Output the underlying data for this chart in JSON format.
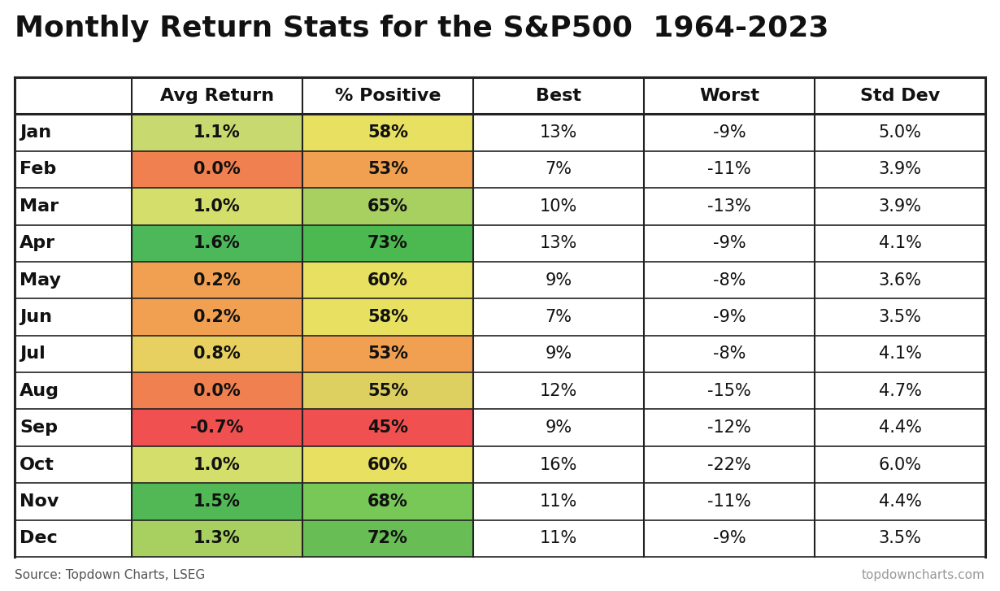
{
  "title": "Monthly Return Stats for the S&P500  1964-2023",
  "columns": [
    "",
    "Avg Return",
    "% Positive",
    "Best",
    "Worst",
    "Std Dev"
  ],
  "months": [
    "Jan",
    "Feb",
    "Mar",
    "Apr",
    "May",
    "Jun",
    "Jul",
    "Aug",
    "Sep",
    "Oct",
    "Nov",
    "Dec"
  ],
  "avg_return": [
    1.1,
    0.0,
    1.0,
    1.6,
    0.2,
    0.2,
    0.8,
    0.0,
    -0.7,
    1.0,
    1.5,
    1.3
  ],
  "pct_positive": [
    58,
    53,
    65,
    73,
    60,
    58,
    53,
    55,
    45,
    60,
    68,
    72
  ],
  "best": [
    13,
    7,
    10,
    13,
    9,
    7,
    9,
    12,
    9,
    16,
    11,
    11
  ],
  "worst": [
    -9,
    -11,
    -13,
    -9,
    -8,
    -9,
    -8,
    -15,
    -12,
    -22,
    -11,
    -9
  ],
  "std_dev": [
    5.0,
    3.9,
    3.9,
    4.1,
    3.6,
    3.5,
    4.1,
    4.7,
    4.4,
    6.0,
    4.4,
    3.5
  ],
  "avg_return_colors": [
    "#c8d96f",
    "#f08050",
    "#d4de6a",
    "#4cb85a",
    "#f0a050",
    "#f0a050",
    "#e8d060",
    "#f08050",
    "#f05050",
    "#d4de6a",
    "#52b855",
    "#a8d060"
  ],
  "pct_positive_colors": [
    "#e8e060",
    "#f0a050",
    "#a8d060",
    "#4cb850",
    "#e8e060",
    "#e8e060",
    "#f0a050",
    "#ddd060",
    "#f05050",
    "#e8e060",
    "#78c858",
    "#68be55"
  ],
  "source_left": "Source: Topdown Charts, LSEG",
  "source_right": "topdowncharts.com",
  "background_color": "#ffffff",
  "table_line_color": "#222222",
  "header_fontsize": 16,
  "cell_fontsize": 15,
  "title_fontsize": 26,
  "source_fontsize": 11
}
